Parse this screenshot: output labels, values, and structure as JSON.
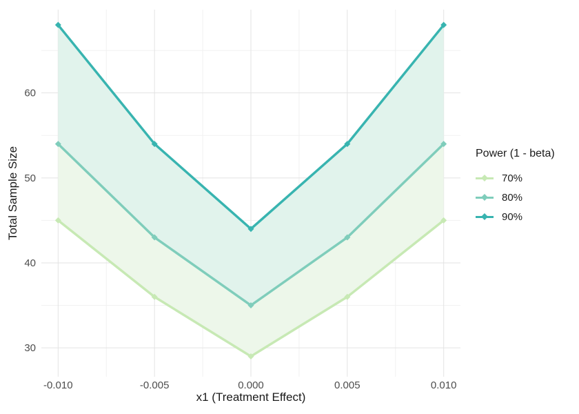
{
  "figure": {
    "background": "#ffffff",
    "grid_major_color": "#e3e3e3",
    "grid_minor_color": "#f1f1f1",
    "tick_label_color": "#4d4d4d",
    "axis_title_color": "#1a1a1a"
  },
  "chart_data": {
    "type": "line",
    "title": "",
    "xlabel": "x1 (Treatment Effect)",
    "ylabel": "Total Sample Size",
    "x": [
      -0.01,
      -0.005,
      0.0,
      0.005,
      0.01
    ],
    "x_tick_labels": [
      "-0.010",
      "-0.005",
      "0.000",
      "0.005",
      "0.010"
    ],
    "x_minor_values": [
      -0.0075,
      -0.0025,
      0.0025,
      0.0075
    ],
    "y_tick_values": [
      30,
      40,
      50,
      60
    ],
    "y_tick_labels": [
      "30",
      "40",
      "50",
      "60"
    ],
    "y_minor_values": [
      35,
      45,
      55,
      65
    ],
    "xlim": [
      -0.01087,
      0.01087
    ],
    "ylim": [
      26.6,
      69.8
    ],
    "grid": true,
    "marker": "diamond",
    "legend_position": "right",
    "legend_title": "Power (1 - beta)",
    "series": [
      {
        "name": "70%",
        "values": [
          45,
          36,
          29,
          36,
          45
        ],
        "color": "#c7e9b4"
      },
      {
        "name": "80%",
        "values": [
          54,
          43,
          35,
          43,
          54
        ],
        "color": "#7fcdbb"
      },
      {
        "name": "90%",
        "values": [
          68,
          54,
          44,
          54,
          68
        ],
        "color": "#38b4b0"
      }
    ],
    "bands": [
      {
        "between": [
          "70%",
          "80%"
        ],
        "fill": "#edf7ea"
      },
      {
        "between": [
          "80%",
          "90%"
        ],
        "fill": "#e1f3ec"
      }
    ]
  }
}
